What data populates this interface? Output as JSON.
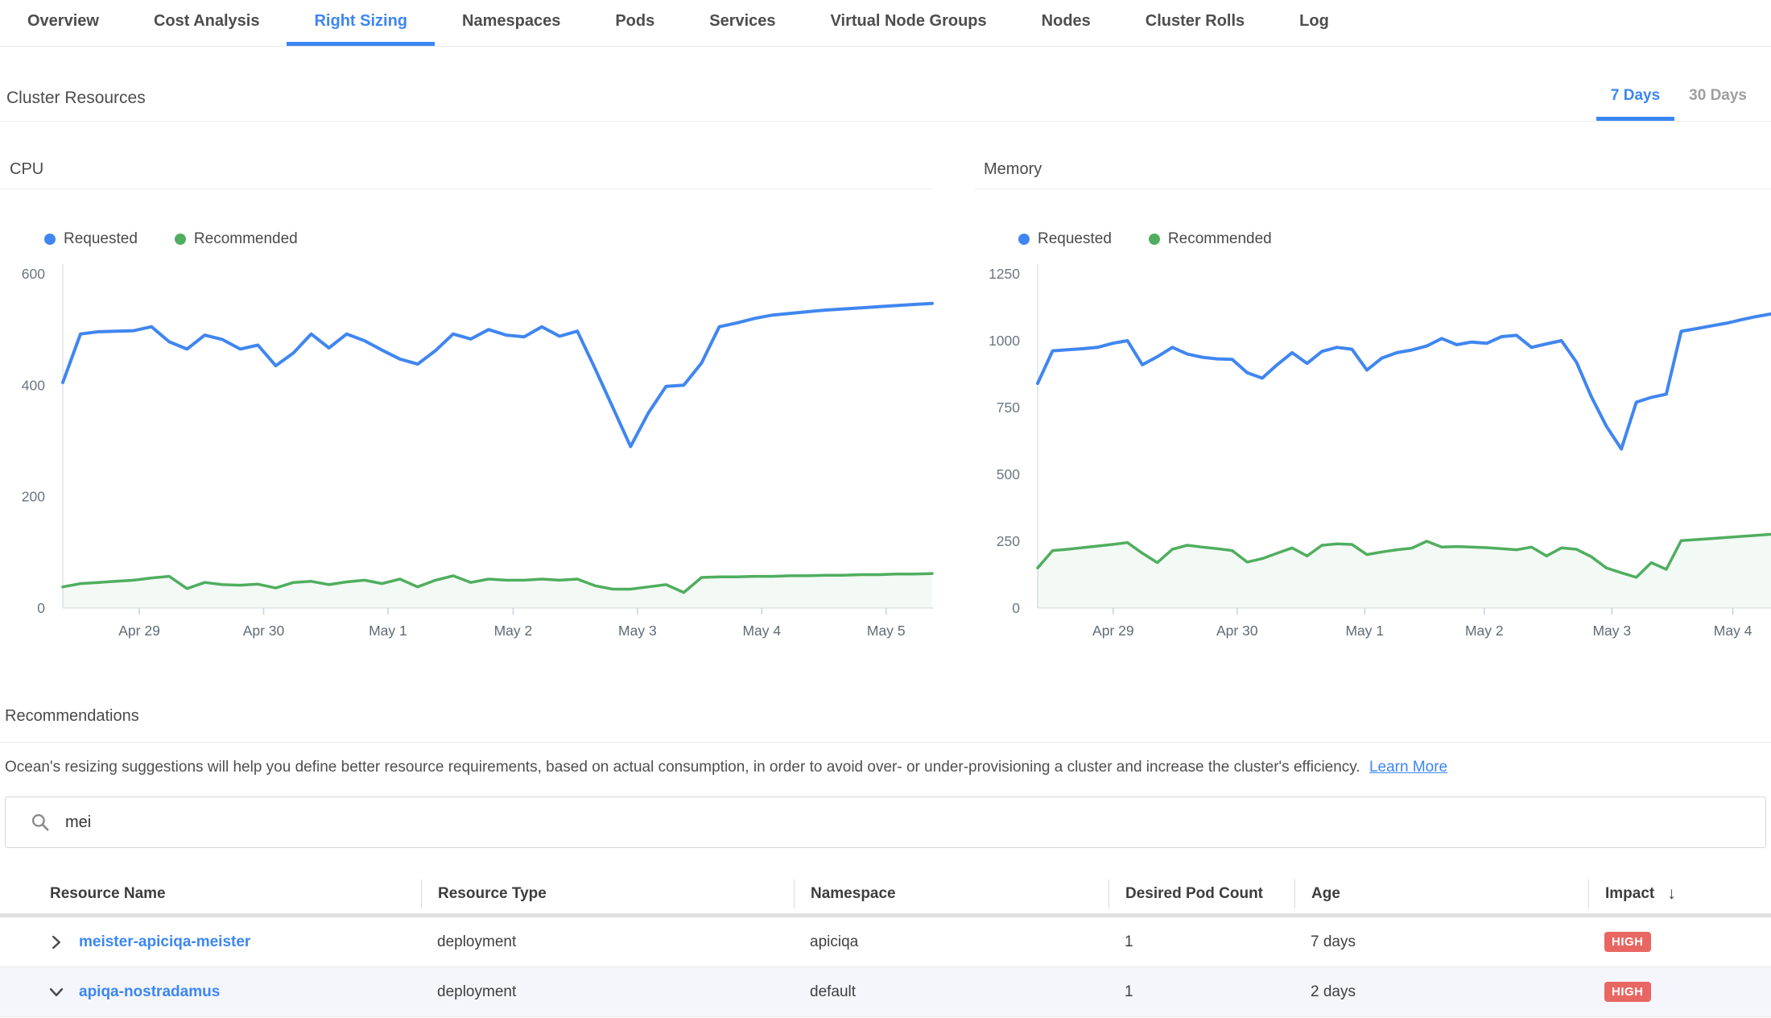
{
  "tab_bar": {
    "items": [
      {
        "label": "Overview",
        "active": false
      },
      {
        "label": "Cost Analysis",
        "active": false
      },
      {
        "label": "Right Sizing",
        "active": true
      },
      {
        "label": "Namespaces",
        "active": false
      },
      {
        "label": "Pods",
        "active": false
      },
      {
        "label": "Services",
        "active": false
      },
      {
        "label": "Virtual Node Groups",
        "active": false
      },
      {
        "label": "Nodes",
        "active": false
      },
      {
        "label": "Cluster Rolls",
        "active": false
      },
      {
        "label": "Log",
        "active": false
      }
    ]
  },
  "cluster_resources": {
    "title": "Cluster Resources",
    "time_range": [
      {
        "label": "7 Days",
        "active": true
      },
      {
        "label": "30 Days",
        "active": false
      }
    ]
  },
  "chart_data": [
    {
      "type": "line",
      "title": "CPU",
      "legend_position": "top-left",
      "grid": false,
      "ylim": [
        0,
        600
      ],
      "y_ticks": [
        0,
        200,
        400,
        600
      ],
      "x_ticks": {
        "labels": [
          "Apr 29",
          "Apr 30",
          "May 1",
          "May 2",
          "May 3",
          "May 4",
          "May 5"
        ],
        "fractions": [
          0.088,
          0.231,
          0.374,
          0.518,
          0.661,
          0.804,
          0.947
        ]
      },
      "series": [
        {
          "name": "Requested",
          "color": "#4086f0",
          "area": false,
          "values": [
            405,
            492,
            496,
            497,
            498,
            505,
            478,
            465,
            490,
            482,
            465,
            472,
            435,
            458,
            492,
            467,
            492,
            480,
            463,
            447,
            438,
            462,
            492,
            483,
            500,
            490,
            487,
            505,
            488,
            497,
            430,
            360,
            290,
            350,
            398,
            400,
            440,
            505,
            512,
            520,
            526,
            529,
            532,
            535,
            537,
            539,
            541,
            543,
            545,
            547
          ]
        },
        {
          "name": "Recommended",
          "color": "#4fae5f",
          "area": true,
          "area_color": "rgba(79,174,95,0.07)",
          "values": [
            38,
            44,
            46,
            48,
            50,
            54,
            57,
            35,
            46,
            42,
            41,
            43,
            36,
            46,
            48,
            42,
            47,
            50,
            44,
            52,
            38,
            50,
            58,
            46,
            52,
            50,
            50,
            52,
            50,
            52,
            40,
            34,
            34,
            38,
            42,
            28,
            55,
            56,
            56,
            57,
            57,
            58,
            58,
            59,
            59,
            60,
            60,
            61,
            61,
            62
          ]
        }
      ]
    },
    {
      "type": "line",
      "title": "Memory",
      "legend_position": "top-left",
      "grid": false,
      "ylim": [
        0,
        1250
      ],
      "y_ticks": [
        0,
        250,
        500,
        750,
        1000,
        1250
      ],
      "x_ticks": {
        "labels": [
          "Apr 29",
          "Apr 30",
          "May 1",
          "May 2",
          "May 3",
          "May 4"
        ],
        "fractions": [
          0.103,
          0.272,
          0.446,
          0.609,
          0.783,
          0.948
        ]
      },
      "series": [
        {
          "name": "Requested",
          "color": "#4086f0",
          "area": false,
          "values": [
            840,
            962,
            966,
            970,
            975,
            990,
            1000,
            910,
            940,
            975,
            950,
            938,
            932,
            930,
            880,
            860,
            910,
            955,
            915,
            960,
            975,
            968,
            890,
            935,
            955,
            965,
            980,
            1008,
            985,
            995,
            990,
            1015,
            1020,
            975,
            988,
            1000,
            920,
            790,
            680,
            595,
            770,
            788,
            800,
            1035,
            1045,
            1055,
            1065,
            1078,
            1090,
            1100
          ]
        },
        {
          "name": "Recommended",
          "color": "#4fae5f",
          "area": true,
          "area_color": "rgba(79,174,95,0.07)",
          "values": [
            150,
            215,
            220,
            226,
            232,
            238,
            245,
            205,
            170,
            220,
            235,
            228,
            222,
            215,
            172,
            185,
            205,
            225,
            195,
            235,
            240,
            238,
            200,
            210,
            218,
            224,
            250,
            228,
            230,
            228,
            226,
            222,
            218,
            228,
            195,
            225,
            220,
            192,
            150,
            132,
            115,
            170,
            145,
            252,
            256,
            260,
            264,
            268,
            272,
            276
          ]
        }
      ]
    }
  ],
  "recommendations": {
    "title": "Recommendations",
    "description": "Ocean's resizing suggestions will help you define better resource requirements, based on actual consumption, in order to avoid over- or under-provisioning a cluster and increase the cluster's efficiency.",
    "learn_more_label": "Learn More",
    "search_value": "mei"
  },
  "table": {
    "columns": [
      "Resource Name",
      "Resource Type",
      "Namespace",
      "Desired Pod Count",
      "Age",
      "Impact"
    ],
    "sort": {
      "column": "Impact",
      "direction": "desc",
      "icon": "↓"
    },
    "impact_color": "#e96762",
    "rows": [
      {
        "name": "meister-apiciqa-meister",
        "type": "deployment",
        "namespace": "apiciqa",
        "desired_pod_count": "1",
        "age": "7 days",
        "impact": "HIGH",
        "expanded": false
      },
      {
        "name": "apiqa-nostradamus",
        "type": "deployment",
        "namespace": "default",
        "desired_pod_count": "1",
        "age": "2 days",
        "impact": "HIGH",
        "expanded": true
      }
    ]
  }
}
